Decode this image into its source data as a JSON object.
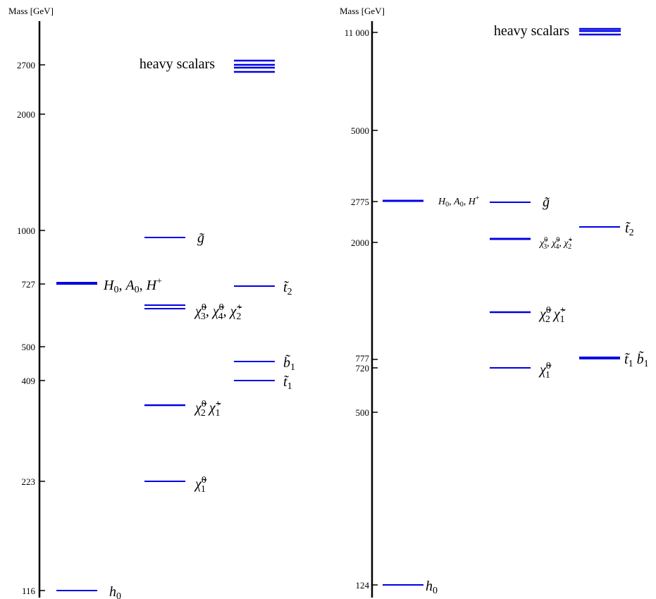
{
  "chart_data": [
    {
      "type": "level-diagram",
      "ylabel": "Mass [GeV]",
      "ticks": [
        "116",
        "223",
        "409",
        "500",
        "727",
        "1000",
        "2000",
        "2700"
      ],
      "levels": [
        {
          "name": "h0",
          "mass": 116,
          "particles": [
            "h_0"
          ]
        },
        {
          "name": "H0",
          "mass": 727,
          "particles": [
            "H_0",
            "A_0",
            "H^+"
          ]
        },
        {
          "name": "chi10",
          "mass": 223,
          "particles": [
            "χ̃_1^0"
          ]
        },
        {
          "name": "chi20chi1p",
          "mass": 330,
          "particles": [
            "χ̃_2^0",
            "χ̃_1^+"
          ]
        },
        {
          "name": "chi30chi40chi2p",
          "mass": 660,
          "particles": [
            "χ̃_3^0",
            "χ̃_4^0",
            "χ̃_2^+"
          ]
        },
        {
          "name": "gluino",
          "mass": 970,
          "particles": [
            "g̃"
          ]
        },
        {
          "name": "t1",
          "mass": 409,
          "particles": [
            "t̃_1"
          ]
        },
        {
          "name": "b1",
          "mass": 450,
          "particles": [
            "b̃_1"
          ]
        },
        {
          "name": "t2",
          "mass": 720,
          "particles": [
            "t̃_2"
          ]
        },
        {
          "name": "heavy",
          "mass": 2700,
          "particles": [
            "heavy scalars"
          ]
        }
      ]
    },
    {
      "type": "level-diagram",
      "ylabel": "Mass [GeV]",
      "ticks": [
        "124",
        "500",
        "720",
        "777",
        "2000",
        "2775",
        "5000",
        "11 000"
      ],
      "levels": [
        {
          "name": "h0",
          "mass": 124,
          "particles": [
            "h_0"
          ]
        },
        {
          "name": "H0",
          "mass": 2775,
          "particles": [
            "H_0",
            "A_0",
            "H^+"
          ]
        },
        {
          "name": "gluino",
          "mass": 2750,
          "particles": [
            "g̃"
          ]
        },
        {
          "name": "chi30chi40chi2p",
          "mass": 2000,
          "particles": [
            "χ̃_3^0",
            "χ̃_4^0",
            "χ̃_2^+"
          ]
        },
        {
          "name": "chi20chi1p",
          "mass": 1150,
          "particles": [
            "χ̃_2^0",
            "χ̃_1^+"
          ]
        },
        {
          "name": "chi10",
          "mass": 720,
          "particles": [
            "χ̃_1^0"
          ]
        },
        {
          "name": "t2",
          "mass": 2250,
          "particles": [
            "t̃_2"
          ]
        },
        {
          "name": "t1b1",
          "mass": 777,
          "particles": [
            "t̃_1",
            "b̃_1"
          ]
        },
        {
          "name": "heavy",
          "mass": 11000,
          "particles": [
            "heavy scalars"
          ]
        }
      ]
    }
  ],
  "left": {
    "ylabel": "Mass [GeV]",
    "ticks": {
      "t116": "116",
      "t223": "223",
      "t409": "409",
      "t500": "500",
      "t727": "727",
      "t1000": "1000",
      "t2000": "2000",
      "t2700": "2700"
    },
    "labels": {
      "heavy": "heavy scalars"
    }
  },
  "right": {
    "ylabel": "Mass [GeV]",
    "ticks": {
      "t124": "124",
      "t500": "500",
      "t720": "720",
      "t777": "777",
      "t2000": "2000",
      "t2775": "2775",
      "t5000": "5000",
      "t11000": "11 000"
    },
    "labels": {
      "heavy": "heavy scalars"
    }
  },
  "colors": {
    "level": "#0000e6",
    "axis": "#000000"
  }
}
